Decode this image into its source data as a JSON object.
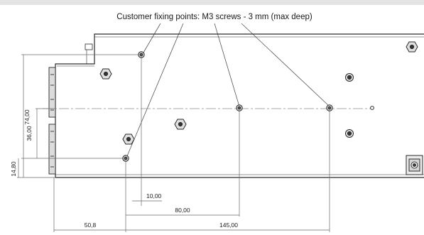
{
  "callout": {
    "title": "Customer fixing points: M3 screws - 3 mm (max deep)"
  },
  "dimensions": {
    "vertical": {
      "overall": "74,00",
      "middle": "36,00",
      "bottom": "14,80"
    },
    "horizontal": {
      "d10": "10,00",
      "d80": "80,00",
      "d50": "50,8",
      "d145": "145,00"
    }
  },
  "colors": {
    "line": "#2a2a2a",
    "thin": "#8a8a8a",
    "background": "#ffffff",
    "topbar": "#e4e4e4"
  }
}
